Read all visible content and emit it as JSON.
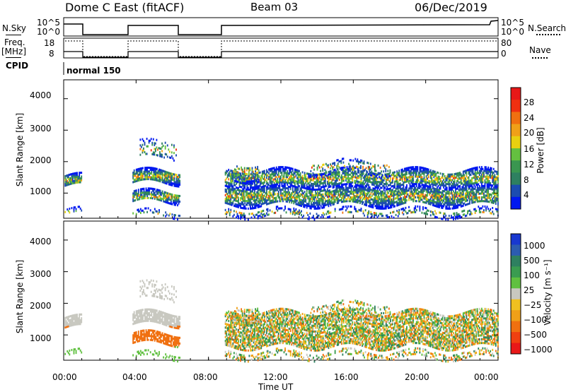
{
  "header": {
    "station": "Dome C East (fitACF)",
    "beam": "Beam 03",
    "date": "06/Dec/2019"
  },
  "strips": {
    "nsky": {
      "label": "N.Sky",
      "left_ticks": [
        "10^5",
        "10^0"
      ],
      "right_label": "N.Search",
      "right_ticks": [
        "10^5",
        "10^0"
      ]
    },
    "freq": {
      "label": "Freq.",
      "unit": "[MHz]",
      "left_ticks": [
        "18",
        "8"
      ],
      "right_label": "Nave",
      "right_ticks": [
        "80",
        "0"
      ]
    },
    "cpid": {
      "label": "CPID",
      "mode": "normal 150"
    }
  },
  "chart_data": [
    {
      "type": "heatmap",
      "name": "power",
      "xlabel": "",
      "ylabel": "Slant Range [km]",
      "ylim": [
        200,
        4600
      ],
      "yticks": [
        "1000",
        "2000",
        "3000",
        "4000"
      ],
      "xlim_hours": [
        0,
        24
      ],
      "colorbar": {
        "label": "Power [dB]",
        "ticks": [
          "4",
          "8",
          "12",
          "16",
          "20",
          "24",
          "28"
        ],
        "colors": [
          "#0018f0",
          "#1c4cb0",
          "#2e8060",
          "#3a9650",
          "#64c040",
          "#e8d010",
          "#f0a018",
          "#f07010",
          "#f03010",
          "#e81818"
        ]
      },
      "data_blocks_hours": [
        [
          0.0,
          1.0
        ],
        [
          3.8,
          6.4
        ],
        [
          8.9,
          24.0
        ]
      ]
    },
    {
      "type": "heatmap",
      "name": "velocity",
      "xlabel": "Time UT",
      "ylabel": "Slant Range [km]",
      "ylim": [
        200,
        4600
      ],
      "yticks": [
        "1000",
        "2000",
        "3000",
        "4000"
      ],
      "xticks": [
        "00:00",
        "04:00",
        "08:00",
        "12:00",
        "16:00",
        "20:00",
        "00:00"
      ],
      "colorbar": {
        "label": "Velocity [m s⁻¹]",
        "ticks": [
          "1000",
          "500",
          "100",
          "25",
          "−25",
          "−100",
          "−500",
          "−1000"
        ],
        "colors": [
          "#1838d0",
          "#2c5cb0",
          "#2e8060",
          "#3a9c50",
          "#60c040",
          "#c8c8c0",
          "#f0c020",
          "#f0a018",
          "#f07010",
          "#f04010",
          "#e81818"
        ]
      }
    }
  ]
}
